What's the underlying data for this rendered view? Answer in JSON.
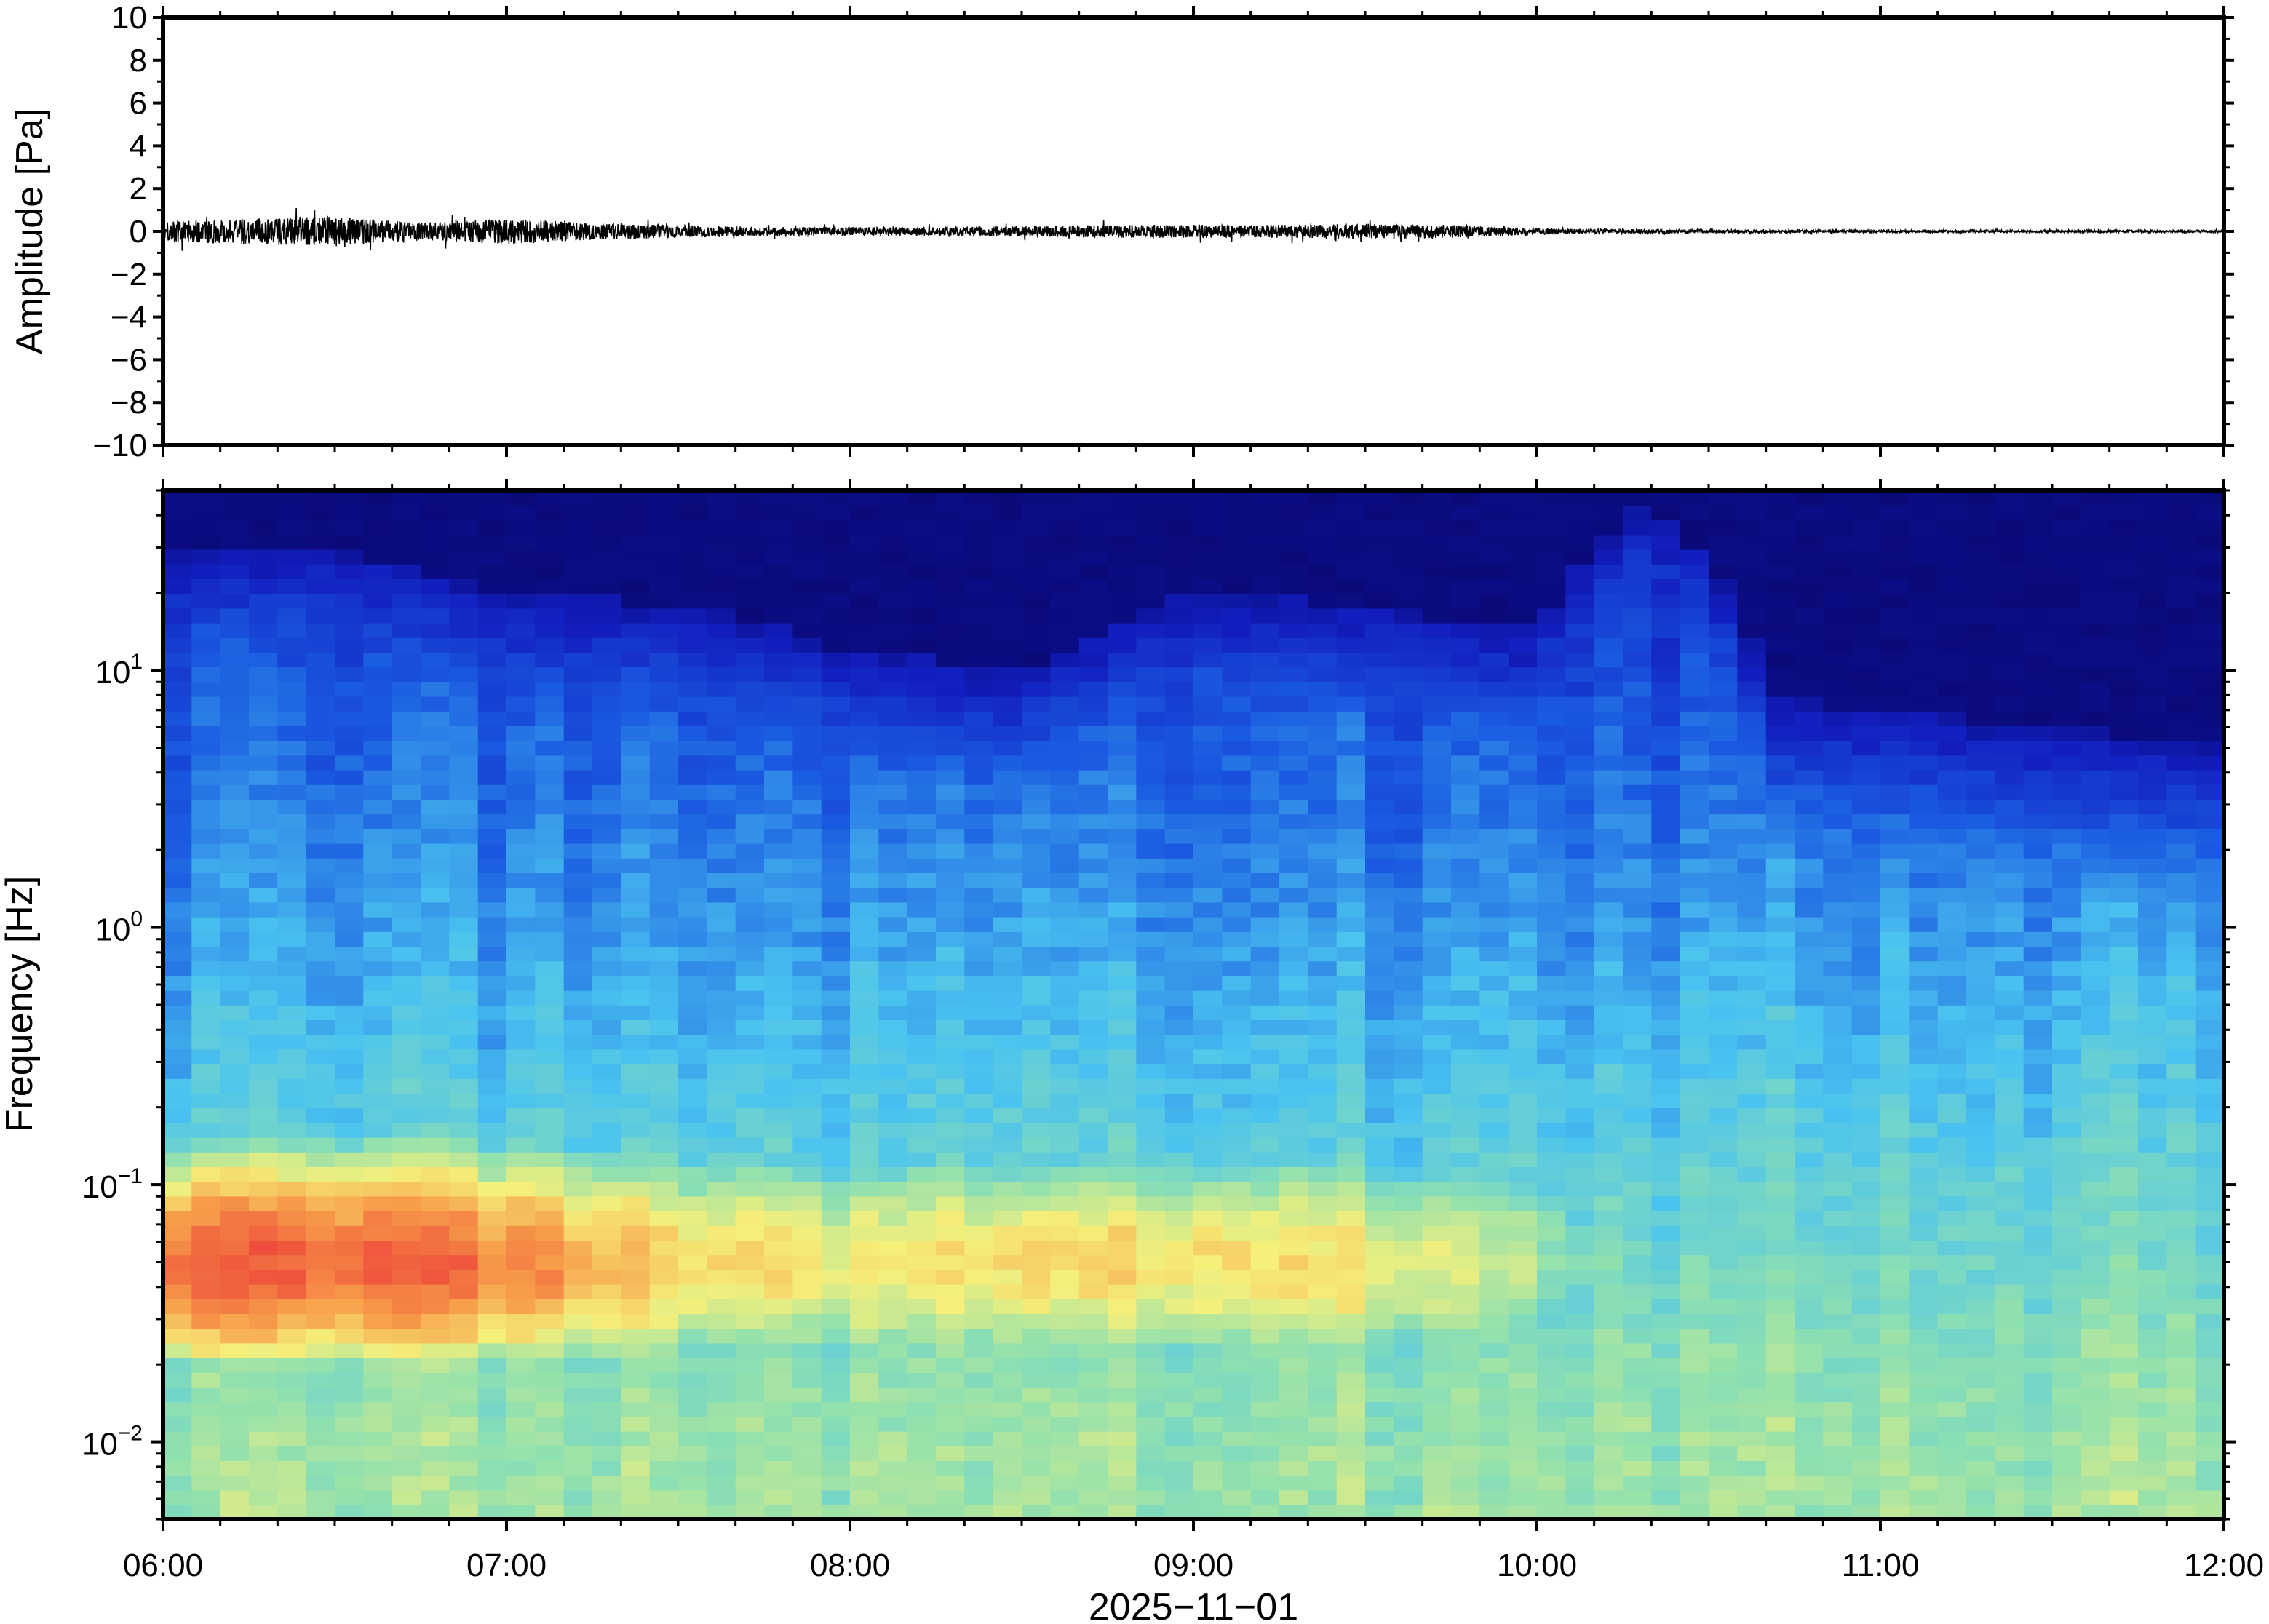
{
  "chart_data": [
    {
      "type": "line",
      "panel": "waveform",
      "ylabel": "Amplitude [Pa]",
      "ylim": [
        -10,
        10
      ],
      "y_ticks": [
        10,
        8,
        6,
        4,
        2,
        0,
        -2,
        -4,
        -6,
        -8,
        -10
      ],
      "y_tick_labels": [
        "10",
        "8",
        "6",
        "4",
        "2",
        "0",
        "−2",
        "−4",
        "−6",
        "−8",
        "−10"
      ],
      "series": [
        {
          "color": "#000000",
          "x": [
            "06:00",
            "06:15",
            "06:30",
            "06:45",
            "07:00",
            "07:15",
            "07:30",
            "07:45",
            "08:00",
            "08:15",
            "08:30",
            "08:45",
            "09:00",
            "09:15",
            "09:30",
            "09:45",
            "10:00",
            "10:15",
            "10:30",
            "10:45",
            "11:00",
            "11:15",
            "11:30",
            "11:45",
            "12:00"
          ],
          "envelope_amplitude_pa": [
            0.5,
            0.6,
            0.7,
            0.4,
            0.6,
            0.4,
            0.3,
            0.2,
            0.2,
            0.2,
            0.25,
            0.3,
            0.3,
            0.3,
            0.35,
            0.3,
            0.15,
            0.1,
            0.08,
            0.08,
            0.06,
            0.06,
            0.06,
            0.06,
            0.06
          ]
        }
      ],
      "grid": false
    },
    {
      "type": "heatmap",
      "panel": "spectrogram",
      "ylabel": "Frequency [Hz]",
      "xlabel": "2025−11−01",
      "y_scale": "log",
      "ylim": [
        0.005,
        50
      ],
      "y_ticks": [
        {
          "base": "10",
          "exp": "1",
          "value": 10
        },
        {
          "base": "10",
          "exp": "0",
          "value": 1
        },
        {
          "base": "10",
          "exp": "−1",
          "value": 0.1
        },
        {
          "base": "10",
          "exp": "−2",
          "value": 0.01
        }
      ],
      "x_tick_labels": [
        "06:00",
        "07:00",
        "08:00",
        "09:00",
        "10:00",
        "11:00",
        "12:00"
      ],
      "xlim": [
        "06:00",
        "12:00"
      ],
      "colormap": "jet",
      "colors": {
        "low": "#0a0a7a",
        "blue": "#1a4fe0",
        "cyan": "#4ac3f0",
        "green": "#8ee0b0",
        "yellow": "#f5f07a",
        "orange": "#f7a04a",
        "red": "#ee4a3a"
      },
      "columns_hz_profile": {
        "time": [
          "06:00",
          "06:30",
          "07:00",
          "07:30",
          "08:00",
          "08:30",
          "09:00",
          "09:30",
          "10:00",
          "10:20",
          "10:40",
          "11:00",
          "11:30",
          "12:00"
        ],
        "upper_energy_cutoff_hz": [
          30,
          30,
          20,
          18,
          12,
          10,
          20,
          18,
          14,
          45,
          8,
          7,
          6,
          5
        ],
        "peak_band_level_at_0.05hz": [
          0.95,
          0.95,
          0.9,
          0.75,
          0.7,
          0.72,
          0.75,
          0.72,
          0.6,
          0.45,
          0.42,
          0.45,
          0.42,
          0.4
        ]
      }
    }
  ]
}
